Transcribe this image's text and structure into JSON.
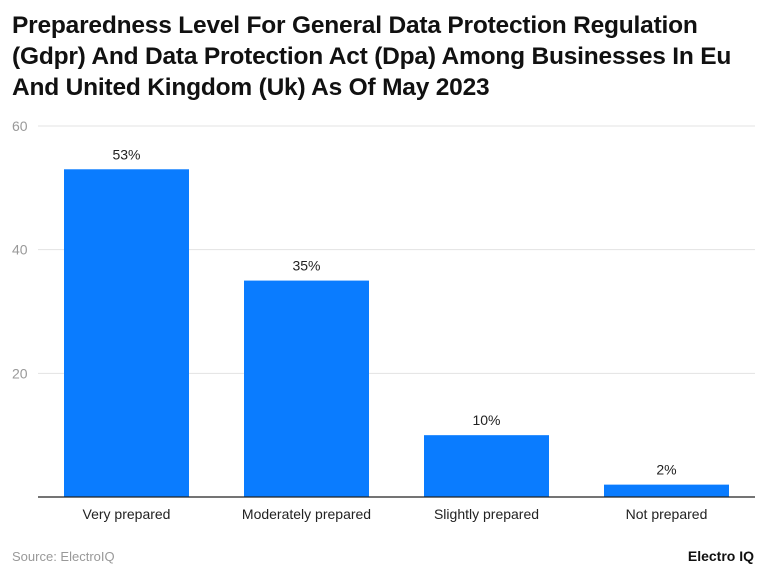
{
  "title": "Preparedness Level For General Data Protection Regulation (Gdpr) And Data Protection Act (Dpa) Among Businesses In Eu And United Kingdom (Uk) As Of May 2023",
  "source": "Source: ElectroIQ",
  "logo": "Electro IQ",
  "chart_data": {
    "type": "bar",
    "categories": [
      "Very prepared",
      "Moderately prepared",
      "Slightly prepared",
      "Not prepared"
    ],
    "values": [
      53,
      35,
      10,
      2
    ],
    "data_labels": [
      "53%",
      "35%",
      "10%",
      "2%"
    ],
    "ylim": [
      0,
      60
    ],
    "yticks": [
      20,
      40,
      60
    ],
    "grid": true,
    "bar_color": "#0a7cff",
    "xlabel": "",
    "ylabel": ""
  }
}
